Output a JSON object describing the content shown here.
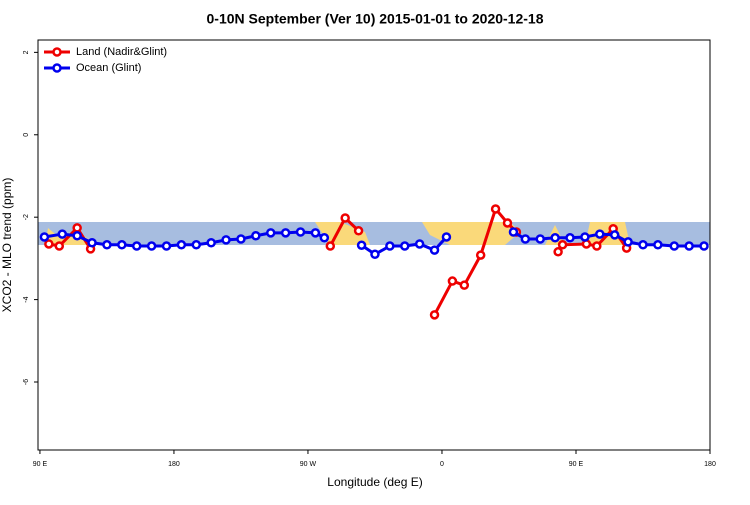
{
  "chart_data": {
    "type": "line",
    "title": "0-10N September (Ver 10)   2015-01-01 to 2020-12-18",
    "x_label": "Longitude (deg E)",
    "y_label": "XCO2 - MLO trend (ppm)",
    "xlim": [
      88.7,
      540
    ],
    "ylim": [
      -7.65,
      2.3
    ],
    "xticks": [
      {
        "value": 90,
        "label": "90 E"
      },
      180,
      {
        "value": 270,
        "label": "90 W"
      },
      {
        "value": 360,
        "label": "0"
      },
      {
        "value": 450,
        "label": "90 E"
      },
      {
        "value": 540,
        "label": "180"
      }
    ],
    "yticks": [
      2,
      0,
      -2,
      -4,
      -6
    ],
    "legend": "top-left",
    "series": [
      {
        "name": "Land (Nadir&Glint)",
        "color": "#ee0000",
        "x": [
          96,
          103,
          115,
          124,
          null,
          285,
          295,
          304,
          null,
          355,
          367,
          375,
          386,
          396,
          404,
          410,
          null,
          438,
          441,
          457,
          464,
          475,
          484
        ],
        "values": [
          -2.65,
          -2.7,
          -2.26,
          -2.77,
          null,
          -2.7,
          -2.02,
          -2.33,
          null,
          -4.37,
          -3.55,
          -3.65,
          -2.92,
          -1.8,
          -2.14,
          -2.36,
          null,
          -2.84,
          -2.67,
          -2.65,
          -2.7,
          -2.28,
          -2.75
        ]
      },
      {
        "name": "Ocean (Glint)",
        "color": "#0000ee",
        "x": [
          93,
          105,
          115,
          125,
          135,
          145,
          155,
          165,
          175,
          185,
          195,
          205,
          215,
          225,
          235,
          245,
          255,
          265,
          275,
          281,
          null,
          306,
          315,
          325,
          335,
          345,
          355,
          363,
          null,
          408,
          416,
          426,
          436,
          446,
          456,
          466,
          476,
          485,
          495,
          505,
          516,
          526,
          536
        ],
        "values": [
          -2.48,
          -2.41,
          -2.45,
          -2.62,
          -2.67,
          -2.67,
          -2.7,
          -2.7,
          -2.7,
          -2.67,
          -2.67,
          -2.62,
          -2.55,
          -2.53,
          -2.45,
          -2.38,
          -2.38,
          -2.36,
          -2.38,
          -2.5,
          null,
          -2.68,
          -2.9,
          -2.7,
          -2.7,
          -2.65,
          -2.8,
          -2.48,
          null,
          -2.36,
          -2.53,
          -2.53,
          -2.5,
          -2.5,
          -2.48,
          -2.41,
          -2.43,
          -2.6,
          -2.67,
          -2.67,
          -2.7,
          -2.7,
          -2.7
        ]
      }
    ]
  }
}
